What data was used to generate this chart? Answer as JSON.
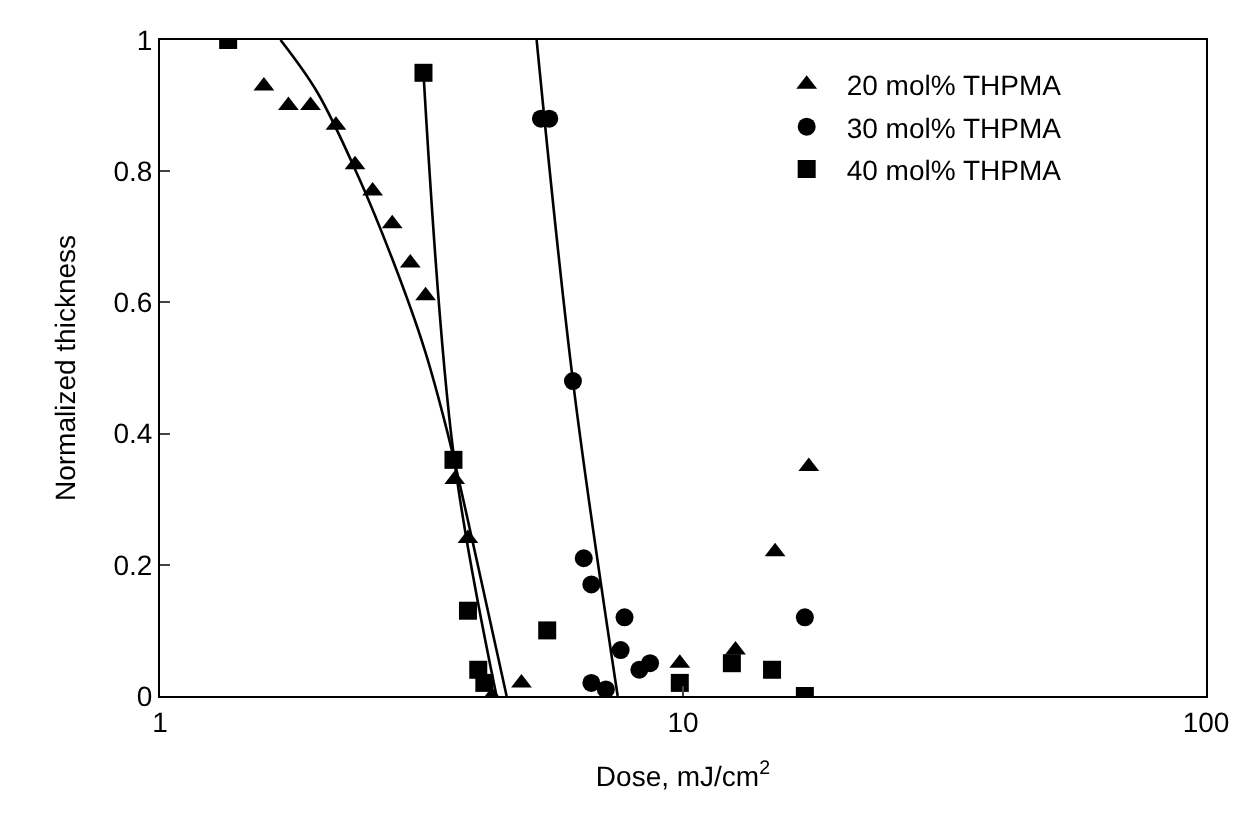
{
  "chart_data": {
    "type": "scatter",
    "xlabel": "Dose, mJ/cm$^{2}$",
    "ylabel": "Normalized thickness",
    "log": "x",
    "xlim": [
      1,
      100
    ],
    "xticks": [
      1,
      10,
      100
    ],
    "ylim": [
      0,
      1
    ],
    "yticks": [
      0,
      0.2,
      0.4,
      0.6,
      0.8,
      1
    ],
    "grid": false,
    "legend": "top right",
    "series": [
      {
        "name": "20 mol% THPMA",
        "color": "#000000",
        "marker": "triangle",
        "x": [
          1.58,
          1.76,
          1.94,
          2.17,
          2.36,
          2.55,
          2.78,
          3.01,
          3.22,
          3.66,
          3.88,
          4.31,
          4.91,
          9.86,
          12.6,
          15.0,
          17.4
        ],
        "values": [
          0.93,
          0.9,
          0.9,
          0.87,
          0.81,
          0.77,
          0.72,
          0.66,
          0.61,
          0.33,
          0.24,
          0.0,
          0.02,
          0.05,
          0.07,
          0.22,
          0.35
        ]
      },
      {
        "name": "30 mol% THPMA",
        "color": "#000000",
        "marker": "circle",
        "x": [
          5.35,
          5.55,
          6.16,
          6.46,
          6.68,
          6.68,
          7.12,
          7.6,
          7.73,
          8.25,
          8.65,
          17.1
        ],
        "values": [
          0.88,
          0.88,
          0.48,
          0.21,
          0.17,
          0.02,
          0.01,
          0.07,
          0.12,
          0.04,
          0.05,
          0.12
        ]
      },
      {
        "name": "40 mol% THPMA",
        "color": "#000000",
        "marker": "square",
        "x": [
          1.35,
          3.19,
          3.64,
          3.88,
          4.06,
          4.17,
          5.5,
          9.86,
          12.4,
          14.8,
          17.1
        ],
        "values": [
          1.0,
          0.95,
          0.36,
          0.13,
          0.04,
          0.02,
          0.1,
          0.02,
          0.05,
          0.04,
          0.0
        ]
      },
      {
        "type": "line",
        "color": "#000000",
        "marker": "none",
        "x": [
          1.7,
          2.0,
          2.4,
          2.8,
          3.2,
          3.55,
          4.0,
          4.6
        ],
        "values": [
          1.0,
          0.92,
          0.79,
          0.66,
          0.53,
          0.4,
          0.22,
          0.0
        ]
      },
      {
        "type": "line",
        "color": "#000000",
        "marker": "none",
        "x": [
          3.19,
          3.64,
          4.4
        ],
        "values": [
          0.95,
          0.37,
          0.0
        ]
      },
      {
        "type": "line",
        "color": "#000000",
        "marker": "none",
        "x": [
          5.25,
          6.16,
          7.5
        ],
        "values": [
          1.0,
          0.48,
          0.0
        ]
      }
    ]
  }
}
